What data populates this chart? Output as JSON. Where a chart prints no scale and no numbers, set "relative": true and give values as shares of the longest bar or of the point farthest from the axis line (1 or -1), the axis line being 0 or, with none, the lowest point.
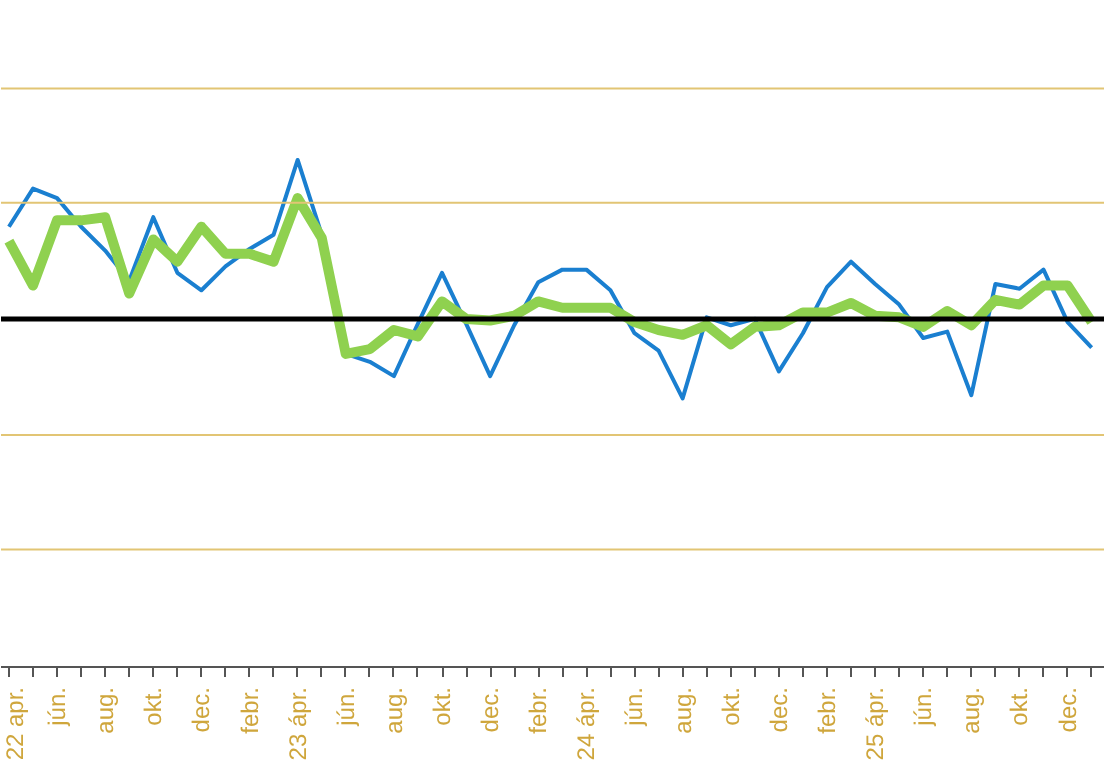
{
  "chart_data": {
    "type": "line",
    "relative": true,
    "marker": "none",
    "ref_lines": [
      {
        "axis": "y",
        "value": 1.45,
        "color": "#e2c574"
      },
      {
        "axis": "y",
        "value": 0.73,
        "color": "#e2c574"
      },
      {
        "axis": "y",
        "value": -0.73,
        "color": "#e2c574"
      },
      {
        "axis": "y",
        "value": -1.45,
        "color": "#e2c574"
      }
    ],
    "categories": [
      "22 apr.",
      null,
      "jún.",
      null,
      "aug.",
      null,
      "okt.",
      null,
      "dec.",
      null,
      "febr.",
      null,
      "23 ápr.",
      null,
      "jún.",
      null,
      "aug.",
      null,
      "okt.",
      null,
      "dec.",
      null,
      "febr.",
      null,
      "24 ápr.",
      null,
      "jún.",
      null,
      "aug.",
      null,
      "okt.",
      null,
      "dec.",
      null,
      "febr.",
      null,
      "25 ápr.",
      null,
      "jún.",
      null,
      "aug.",
      null,
      "okt.",
      null,
      "dec.",
      null
    ],
    "series": [
      {
        "color": "#1a7fd0",
        "values": [
          0.58,
          0.82,
          0.76,
          0.58,
          0.43,
          0.24,
          0.64,
          0.29,
          0.18,
          0.33,
          0.44,
          0.53,
          1.0,
          0.53,
          -0.22,
          -0.27,
          -0.36,
          -0.03,
          0.29,
          -0.03,
          -0.36,
          -0.04,
          0.23,
          0.31,
          0.31,
          0.18,
          -0.09,
          -0.2,
          -0.5,
          0.01,
          -0.04,
          0,
          -0.33,
          -0.09,
          0.2,
          0.36,
          0.22,
          0.09,
          -0.12,
          -0.08,
          -0.48,
          0.22,
          0.19,
          0.31,
          -0.02,
          -0.18
        ]
      },
      {
        "color": "#8fd14f",
        "values": [
          0.49,
          0.21,
          0.62,
          0.62,
          0.64,
          0.16,
          0.5,
          0.36,
          0.58,
          0.41,
          0.41,
          0.36,
          0.76,
          0.51,
          -0.22,
          -0.19,
          -0.07,
          -0.11,
          0.11,
          0,
          -0.01,
          0.02,
          0.11,
          0.07,
          0.07,
          0.07,
          -0.02,
          -0.07,
          -0.1,
          -0.04,
          -0.16,
          -0.05,
          -0.04,
          0.04,
          0.04,
          0.1,
          0.02,
          0.01,
          -0.05,
          0.05,
          -0.04,
          0.12,
          0.09,
          0.21,
          0.21,
          -0.02
        ]
      }
    ]
  }
}
